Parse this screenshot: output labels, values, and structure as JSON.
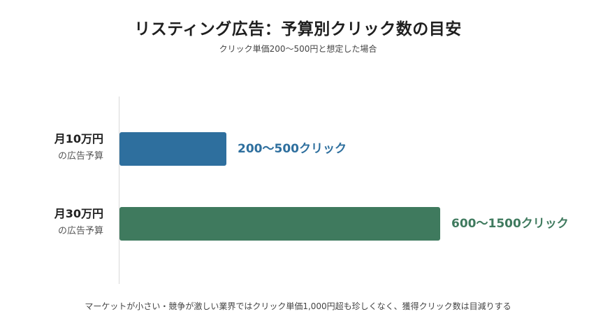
{
  "title": "リスティング広告：予算別クリック数の目安",
  "subtitle": "クリック単価200〜500円と想定した場合",
  "footnote": "マーケットが小さい・競争が激しい業界ではクリック単価1,000円超も珍しくなく、獲得クリック数は目減りする",
  "chart_data": {
    "type": "bar",
    "orientation": "horizontal",
    "title": "リスティング広告：予算別クリック数の目安",
    "subtitle": "クリック単価200〜500円と想定した場合",
    "categories": [
      {
        "label": "月10万円",
        "sublabel": "の広告予算"
      },
      {
        "label": "月30万円",
        "sublabel": "の広告予算"
      }
    ],
    "series": [
      {
        "values": [
          500,
          1500
        ],
        "ranges": [
          [
            200,
            500
          ],
          [
            600,
            1500
          ]
        ],
        "value_labels": [
          "200〜500クリック",
          "600〜1500クリック"
        ],
        "colors": [
          "#2e6f9e",
          "#3f7a5e"
        ]
      }
    ],
    "xlim": [
      0,
      1500
    ],
    "grid": false,
    "legend": "none"
  }
}
